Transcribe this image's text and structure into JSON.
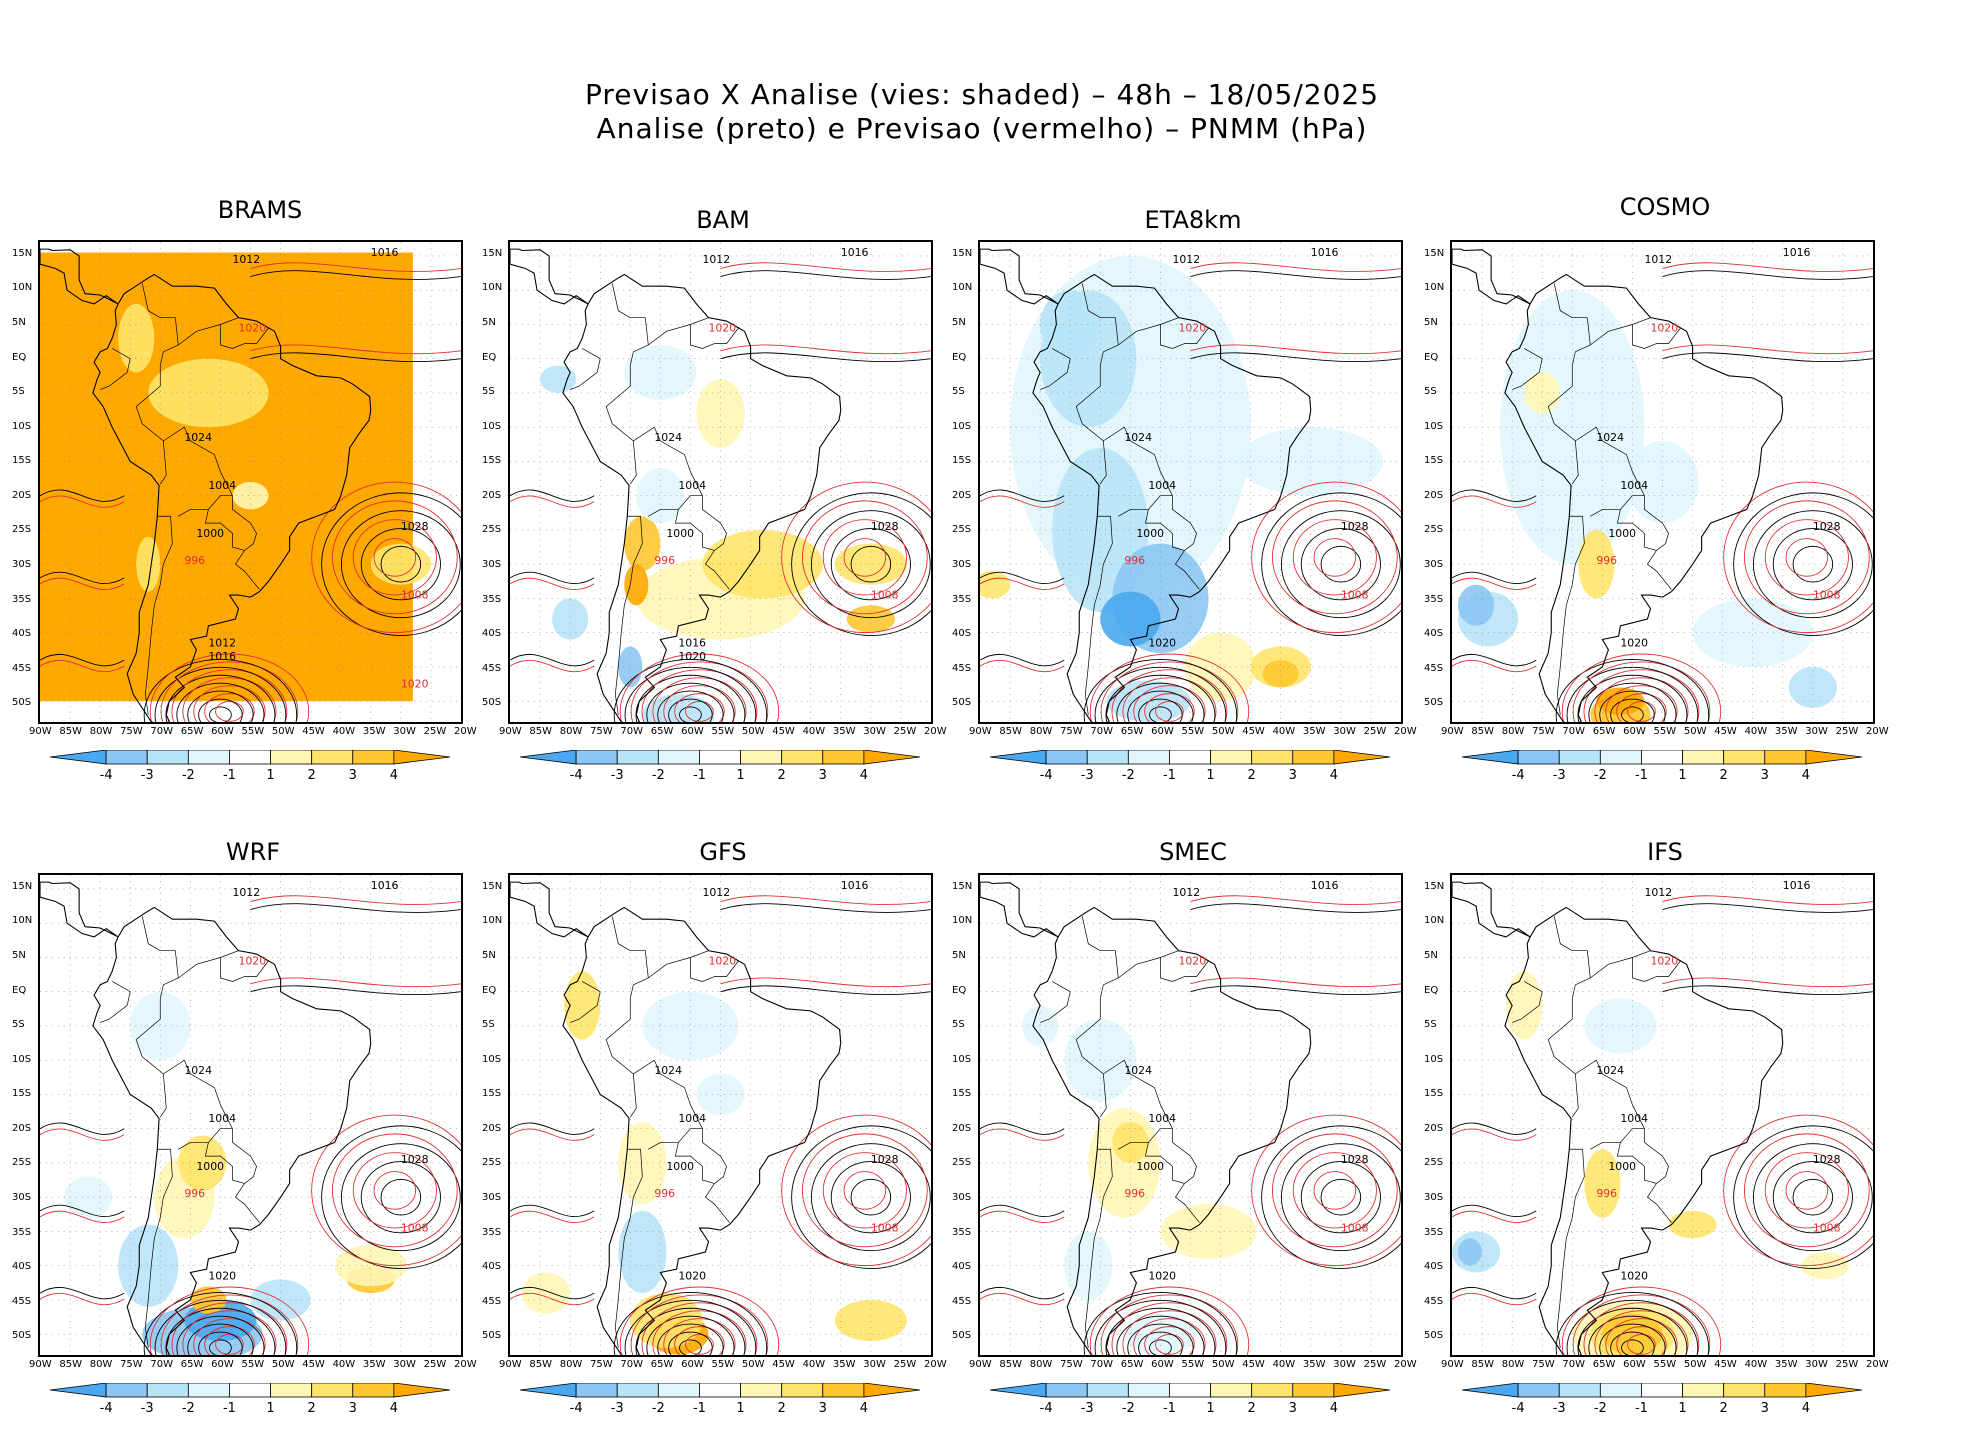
{
  "title_line1": "Previsao X Analise (vies: shaded) – 48h – 18/05/2025",
  "title_line2": "Analise (preto) e Previsao (vermelho) – PNMM (hPa)",
  "lat_labels": [
    "15N",
    "10N",
    "5N",
    "EQ",
    "5S",
    "10S",
    "15S",
    "20S",
    "25S",
    "30S",
    "35S",
    "40S",
    "45S",
    "50S"
  ],
  "lon_labels": [
    "90W",
    "85W",
    "80W",
    "75W",
    "70W",
    "65W",
    "60W",
    "55W",
    "50W",
    "45W",
    "40W",
    "35W",
    "30W",
    "25W",
    "20W"
  ],
  "colorbar_labels": [
    "-4",
    "-3",
    "-2",
    "-1",
    "1",
    "2",
    "3",
    "4"
  ],
  "colors": {
    "neg4": "#4aa8f0",
    "neg3": "#8cc6f4",
    "neg2": "#b8e4f8",
    "neg1": "#e0f6fc",
    "zero": "#ffffff",
    "pos1": "#fff6b4",
    "pos2": "#ffe46a",
    "pos3": "#ffc830",
    "pos4": "#ffa800",
    "analysis": "#000000",
    "forecast": "#e03030",
    "coast": "#000000"
  },
  "panels": [
    {
      "name": "BRAMS",
      "id": "brams",
      "bias": "pos-strong",
      "isobars": [
        "1012",
        "1016",
        "1020",
        "1024",
        "1028",
        "1008",
        "1004",
        "1000",
        "996",
        "1012",
        "1016",
        "1020"
      ]
    },
    {
      "name": "BAM",
      "id": "bam",
      "bias": "mixed",
      "isobars": [
        "1012",
        "1016",
        "1020",
        "1024",
        "1028",
        "1008",
        "1004",
        "1000",
        "996",
        "1016",
        "1020"
      ]
    },
    {
      "name": "ETA8km",
      "id": "eta",
      "bias": "neg",
      "isobars": [
        "1012",
        "1016",
        "1020",
        "1024",
        "1028",
        "1008",
        "1004",
        "1000",
        "996",
        "1020"
      ]
    },
    {
      "name": "COSMO",
      "id": "cosmo",
      "bias": "neg-light",
      "isobars": [
        "1012",
        "1016",
        "1020",
        "1024",
        "1028",
        "1008",
        "1004",
        "1000",
        "996",
        "1020"
      ]
    },
    {
      "name": "WRF",
      "id": "wrf",
      "bias": "mixed-neg",
      "isobars": [
        "1012",
        "1016",
        "1020",
        "1024",
        "1028",
        "1008",
        "1004",
        "1000",
        "996",
        "1020"
      ]
    },
    {
      "name": "GFS",
      "id": "gfs",
      "bias": "mixed-light",
      "isobars": [
        "1012",
        "1016",
        "1020",
        "1024",
        "1028",
        "1008",
        "1004",
        "1000",
        "996",
        "1020"
      ]
    },
    {
      "name": "SMEC",
      "id": "smec",
      "bias": "light",
      "isobars": [
        "1012",
        "1016",
        "1020",
        "1024",
        "1028",
        "1008",
        "1004",
        "1000",
        "996",
        "1020"
      ]
    },
    {
      "name": "IFS",
      "id": "ifs",
      "bias": "light-pos",
      "isobars": [
        "1012",
        "1016",
        "1020",
        "1024",
        "1028",
        "1008",
        "1004",
        "1000",
        "996",
        "1020"
      ]
    }
  ]
}
